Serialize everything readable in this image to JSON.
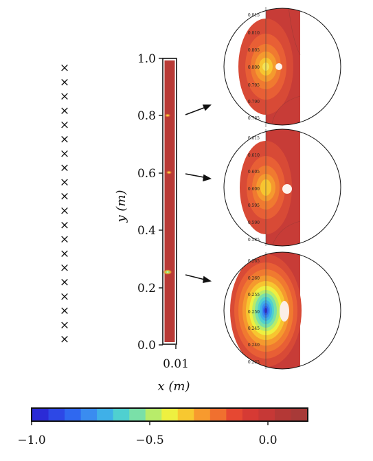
{
  "axes": {
    "y_label": "y (m)",
    "x_label": "x (m)",
    "y_ticks": [
      "1.0",
      "0.8",
      "0.6",
      "0.4",
      "0.2",
      "0.0"
    ],
    "x_ticks": [
      "0.01"
    ]
  },
  "markers": {
    "symbol": "×",
    "count": 20
  },
  "zooms": [
    {
      "ticks": [
        "0.815",
        "0.810",
        "0.805",
        "0.800",
        "0.795",
        "0.790",
        "0.785"
      ]
    },
    {
      "ticks": [
        "0.615",
        "0.610",
        "0.605",
        "0.600",
        "0.595",
        "0.590",
        "0.585"
      ]
    },
    {
      "ticks": [
        "0.265",
        "0.260",
        "0.255",
        "0.250",
        "0.245",
        "0.240",
        "0.235"
      ]
    }
  ],
  "colorbar": {
    "ticks": [
      "−1.0",
      "−0.5",
      "0.0"
    ],
    "colors": [
      "#2b2bd6",
      "#2d48e6",
      "#2f68f0",
      "#3a8cf0",
      "#3fb0e8",
      "#4fd0d0",
      "#7ae0a8",
      "#b8ec6a",
      "#eef040",
      "#f7c830",
      "#f79a2e",
      "#f0702f",
      "#e64832",
      "#d63a34",
      "#c63836",
      "#b43836",
      "#a83a38"
    ]
  },
  "field_colors": {
    "bg": "#b83a36",
    "zoom_bg": "#c73c37"
  }
}
